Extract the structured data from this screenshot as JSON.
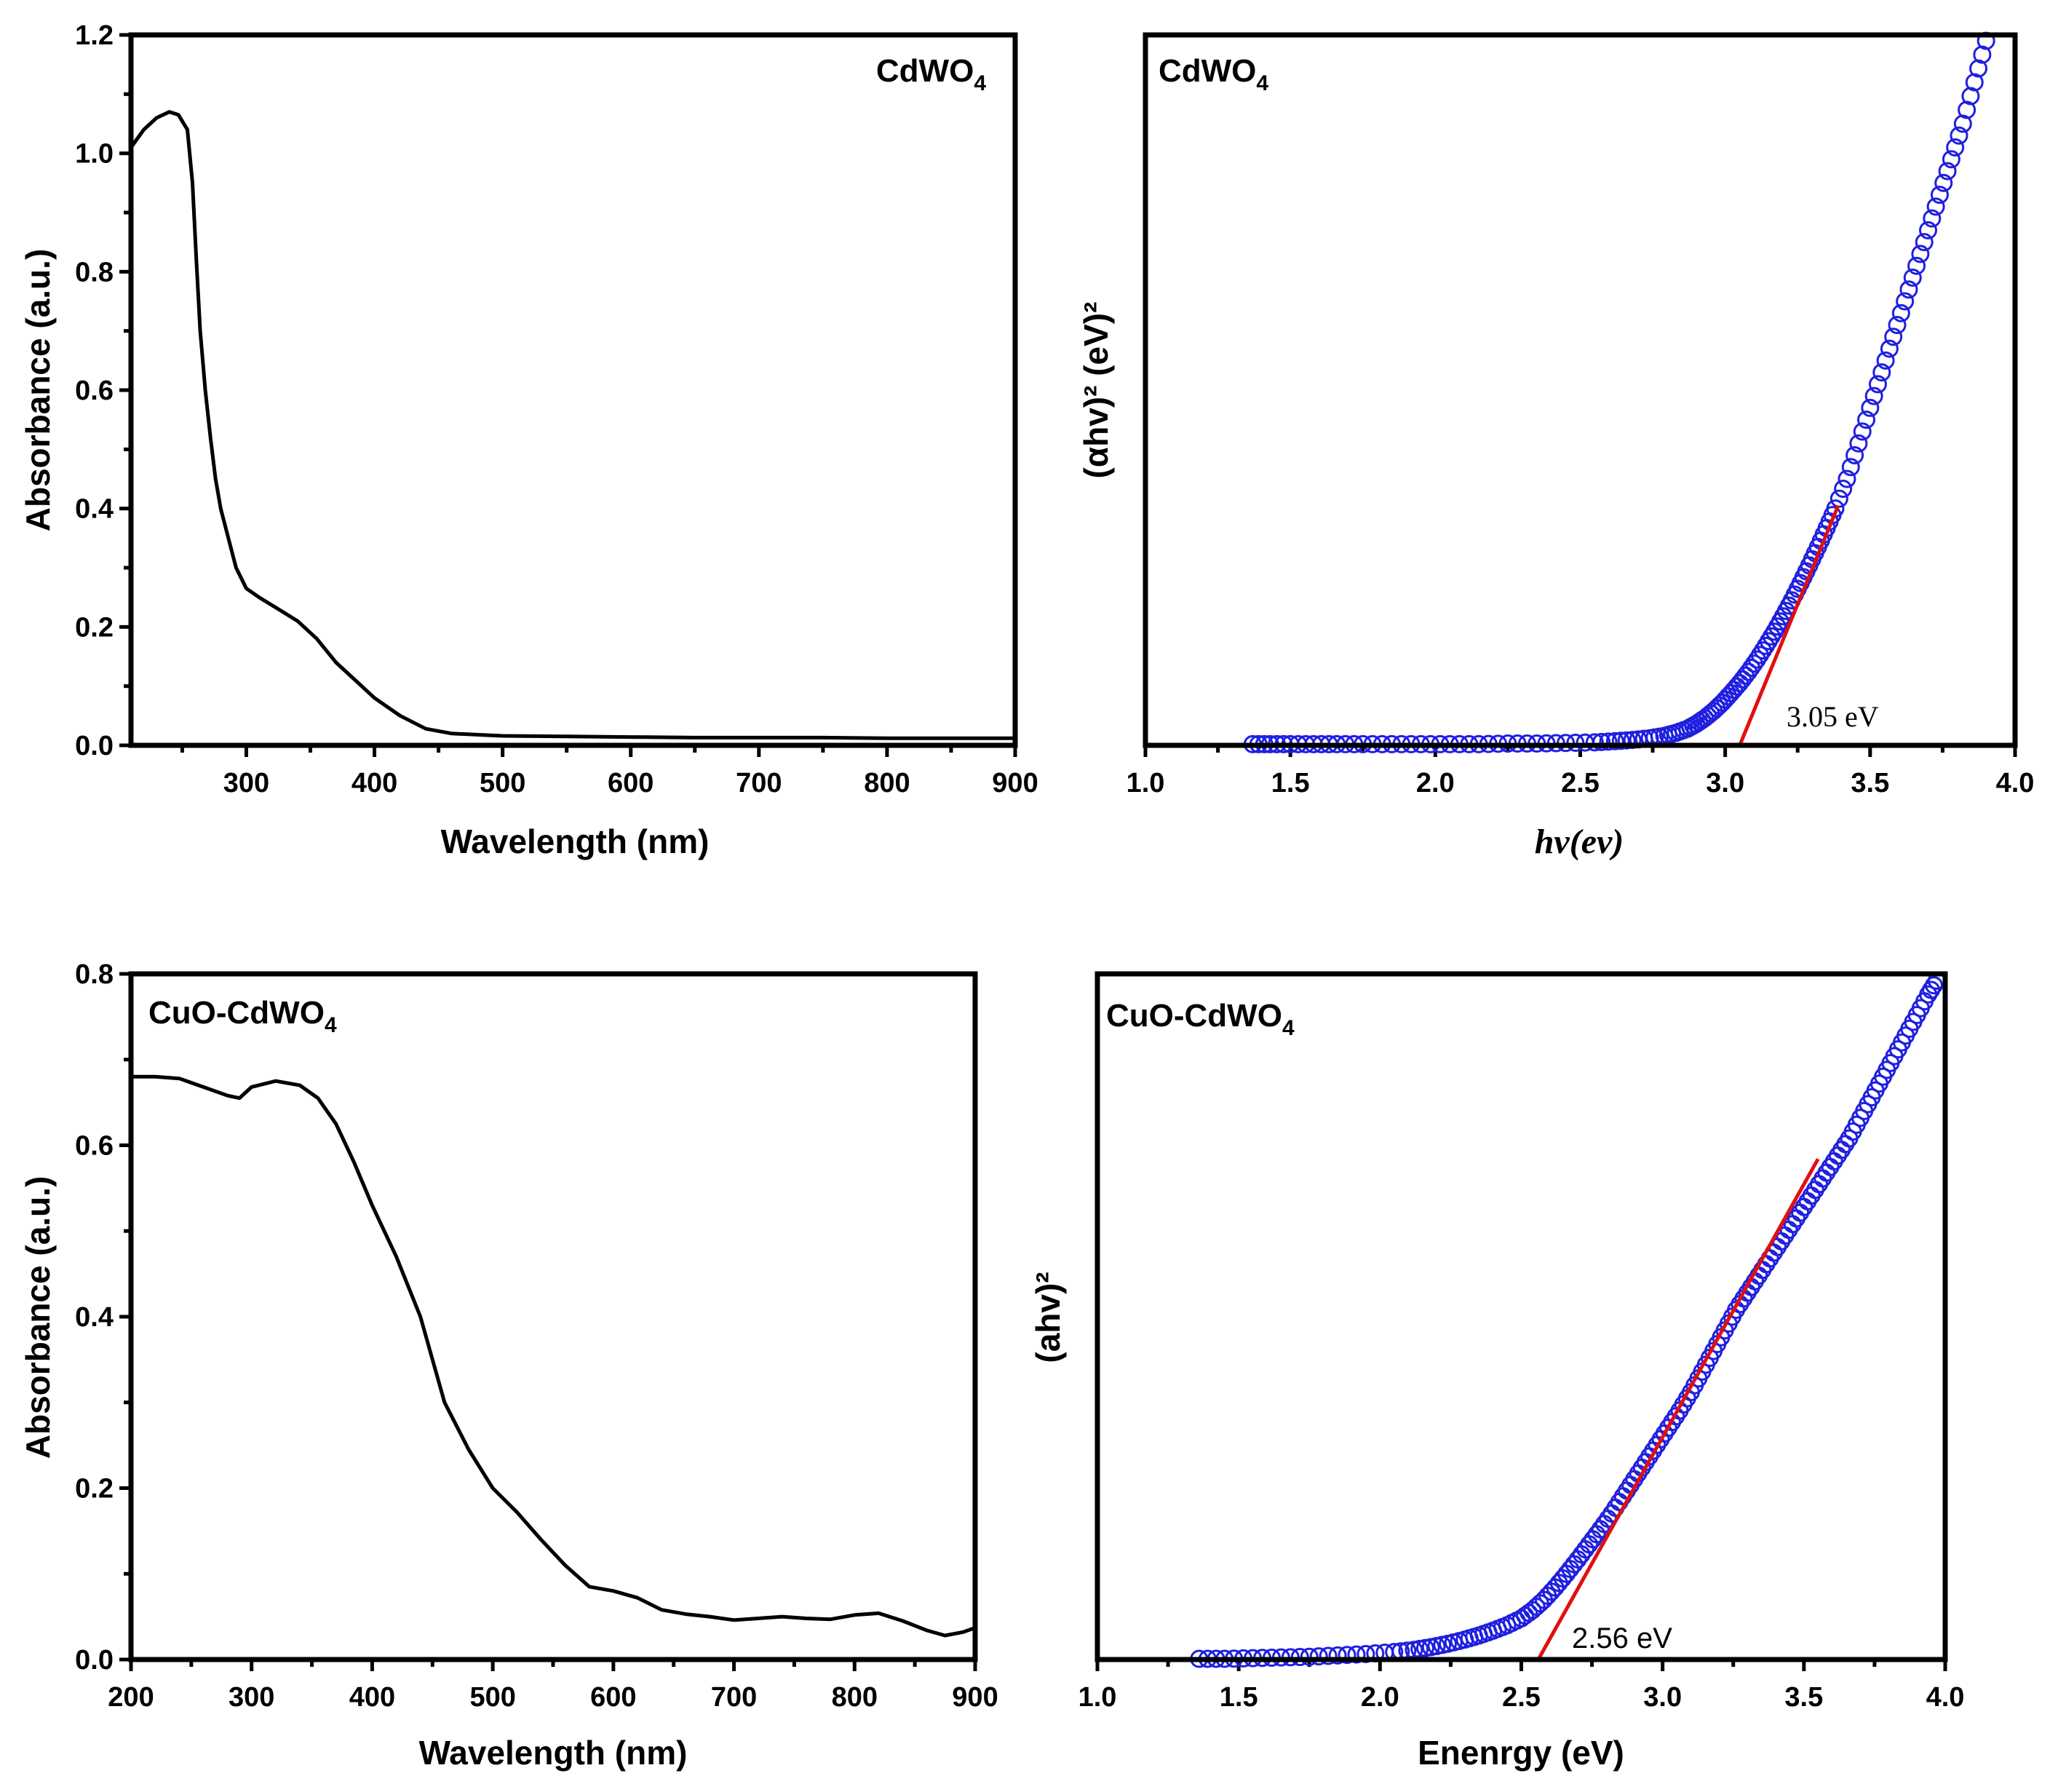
{
  "chart_data": [
    {
      "id": "p1",
      "type": "line",
      "title": "CdWO",
      "title_sub": "4",
      "xlabel": "Wavelength (nm)",
      "ylabel": "Absorbance (a.u.)",
      "xlim": [
        210,
        900
      ],
      "ylim": [
        0,
        1.2
      ],
      "xticks": [
        300,
        400,
        500,
        600,
        700,
        800,
        900
      ],
      "xtick_labels": [
        "300",
        "400",
        "500",
        "600",
        "700",
        "800",
        "900"
      ],
      "yticks": [
        0,
        0.2,
        0.4,
        0.6,
        0.8,
        1.0,
        1.2
      ],
      "ytick_labels": [
        "0.0",
        "0.2",
        "0.4",
        "0.6",
        "0.8",
        "1.0",
        "1.2"
      ],
      "colors": {
        "line": "#000000"
      },
      "series": [
        {
          "name": "CdWO4",
          "x": [
            210,
            220,
            230,
            240,
            247,
            254,
            258,
            261,
            264,
            268,
            272,
            276,
            280,
            286,
            292,
            300,
            310,
            325,
            340,
            355,
            370,
            385,
            400,
            420,
            440,
            460,
            480,
            500,
            550,
            600,
            650,
            700,
            750,
            800,
            850,
            900
          ],
          "y": [
            1.01,
            1.04,
            1.06,
            1.07,
            1.065,
            1.04,
            0.95,
            0.82,
            0.7,
            0.6,
            0.52,
            0.45,
            0.4,
            0.35,
            0.3,
            0.265,
            0.25,
            0.23,
            0.21,
            0.18,
            0.14,
            0.11,
            0.08,
            0.05,
            0.028,
            0.02,
            0.018,
            0.016,
            0.015,
            0.014,
            0.013,
            0.013,
            0.013,
            0.012,
            0.012,
            0.012
          ]
        }
      ]
    },
    {
      "id": "p2",
      "type": "scatter",
      "title": "CdWO",
      "title_sub": "4",
      "xlabel": "hv(ev)",
      "ylabel": "(αhv)² (eV)²",
      "xlim": [
        1.0,
        4.0
      ],
      "ylim": [
        0,
        1.2
      ],
      "xticks": [
        1.0,
        1.5,
        2.0,
        2.5,
        3.0,
        3.5,
        4.0
      ],
      "xtick_labels": [
        "1.0",
        "1.5",
        "2.0",
        "2.5",
        "3.0",
        "3.5",
        "4.0"
      ],
      "colors": {
        "points": "#1f1fe0",
        "fit": "#e01010"
      },
      "annotation": "3.05 eV",
      "band_gap": 3.05,
      "series": [
        {
          "name": "data",
          "x": [
            1.37,
            1.43,
            1.5,
            1.58,
            1.66,
            1.75,
            1.85,
            1.95,
            2.05,
            2.15,
            2.25,
            2.35,
            2.45,
            2.55,
            2.62,
            2.68,
            2.74,
            2.79,
            2.83,
            2.87,
            2.9,
            2.93,
            2.96,
            2.99,
            3.02,
            3.05,
            3.08,
            3.11,
            3.14,
            3.17,
            3.2,
            3.23,
            3.26,
            3.29,
            3.32,
            3.35,
            3.38,
            3.42,
            3.46,
            3.5,
            3.54,
            3.58,
            3.62,
            3.66,
            3.7,
            3.74,
            3.78,
            3.82,
            3.86,
            3.9
          ],
          "y": [
            0.002,
            0.002,
            0.002,
            0.002,
            0.002,
            0.002,
            0.002,
            0.002,
            0.002,
            0.002,
            0.003,
            0.003,
            0.004,
            0.005,
            0.007,
            0.009,
            0.012,
            0.016,
            0.021,
            0.028,
            0.036,
            0.046,
            0.058,
            0.072,
            0.088,
            0.105,
            0.124,
            0.145,
            0.168,
            0.192,
            0.218,
            0.245,
            0.274,
            0.304,
            0.335,
            0.367,
            0.4,
            0.45,
            0.51,
            0.57,
            0.63,
            0.69,
            0.75,
            0.81,
            0.87,
            0.93,
            0.99,
            1.05,
            1.12,
            1.19
          ]
        },
        {
          "name": "fit",
          "x": [
            3.05,
            3.39
          ],
          "y": [
            0.0,
            0.405
          ]
        }
      ]
    },
    {
      "id": "p3",
      "type": "line",
      "title": "CuO-CdWO",
      "title_sub": "4",
      "xlabel": "Wavelength (nm)",
      "ylabel": "Absorbance (a.u.)",
      "xlim": [
        200,
        900
      ],
      "ylim": [
        0,
        0.8
      ],
      "xticks": [
        200,
        300,
        400,
        500,
        600,
        700,
        800,
        900
      ],
      "xtick_labels": [
        "200",
        "300",
        "400",
        "500",
        "600",
        "700",
        "800",
        "900"
      ],
      "yticks": [
        0,
        0.2,
        0.4,
        0.6,
        0.8
      ],
      "ytick_labels": [
        "0.0",
        "0.2",
        "0.4",
        "0.6",
        "0.8"
      ],
      "colors": {
        "line": "#000000"
      },
      "series": [
        {
          "name": "CuO-CdWO4",
          "x": [
            200,
            220,
            240,
            260,
            280,
            290,
            300,
            320,
            340,
            355,
            370,
            385,
            400,
            420,
            440,
            460,
            480,
            500,
            520,
            540,
            560,
            580,
            600,
            620,
            640,
            660,
            680,
            700,
            720,
            740,
            760,
            780,
            800,
            820,
            840,
            860,
            875,
            890,
            900
          ],
          "y": [
            0.68,
            0.68,
            0.678,
            0.668,
            0.658,
            0.655,
            0.668,
            0.675,
            0.67,
            0.655,
            0.625,
            0.58,
            0.53,
            0.47,
            0.4,
            0.3,
            0.245,
            0.2,
            0.172,
            0.14,
            0.11,
            0.085,
            0.08,
            0.072,
            0.058,
            0.053,
            0.05,
            0.046,
            0.048,
            0.05,
            0.048,
            0.047,
            0.052,
            0.054,
            0.045,
            0.034,
            0.028,
            0.032,
            0.037
          ]
        }
      ]
    },
    {
      "id": "p4",
      "type": "scatter",
      "title": "CuO-CdWO",
      "title_sub": "4",
      "xlabel": "Enenrgy (eV)",
      "ylabel": "(ahv)²",
      "xlim": [
        1.0,
        4.0
      ],
      "ylim": [
        0,
        1.0
      ],
      "xticks": [
        1.0,
        1.5,
        2.0,
        2.5,
        3.0,
        3.5,
        4.0
      ],
      "xtick_labels": [
        "1.0",
        "1.5",
        "2.0",
        "2.5",
        "3.0",
        "3.5",
        "4.0"
      ],
      "colors": {
        "points": "#1f1fe0",
        "fit": "#e01010"
      },
      "annotation": "2.56 eV",
      "band_gap": 2.56,
      "series": [
        {
          "name": "data",
          "x": [
            1.36,
            1.45,
            1.55,
            1.65,
            1.75,
            1.85,
            1.95,
            2.05,
            2.12,
            2.18,
            2.24,
            2.3,
            2.35,
            2.4,
            2.45,
            2.5,
            2.54,
            2.58,
            2.62,
            2.66,
            2.7,
            2.74,
            2.78,
            2.82,
            2.86,
            2.9,
            2.94,
            2.98,
            3.02,
            3.06,
            3.1,
            3.14,
            3.18,
            3.22,
            3.26,
            3.3,
            3.34,
            3.38,
            3.42,
            3.46,
            3.5,
            3.54,
            3.58,
            3.62,
            3.66,
            3.7,
            3.74,
            3.78,
            3.82,
            3.86,
            3.9,
            3.94,
            3.97
          ],
          "y": [
            0.001,
            0.001,
            0.002,
            0.003,
            0.004,
            0.006,
            0.008,
            0.011,
            0.014,
            0.018,
            0.023,
            0.029,
            0.035,
            0.042,
            0.05,
            0.06,
            0.072,
            0.087,
            0.105,
            0.125,
            0.146,
            0.168,
            0.19,
            0.213,
            0.238,
            0.263,
            0.288,
            0.313,
            0.338,
            0.363,
            0.39,
            0.42,
            0.45,
            0.48,
            0.51,
            0.535,
            0.56,
            0.585,
            0.61,
            0.635,
            0.66,
            0.685,
            0.71,
            0.735,
            0.76,
            0.79,
            0.82,
            0.85,
            0.88,
            0.91,
            0.94,
            0.97,
            0.99
          ]
        },
        {
          "name": "fit",
          "x": [
            2.56,
            3.55
          ],
          "y": [
            0.0,
            0.73
          ]
        }
      ]
    }
  ]
}
